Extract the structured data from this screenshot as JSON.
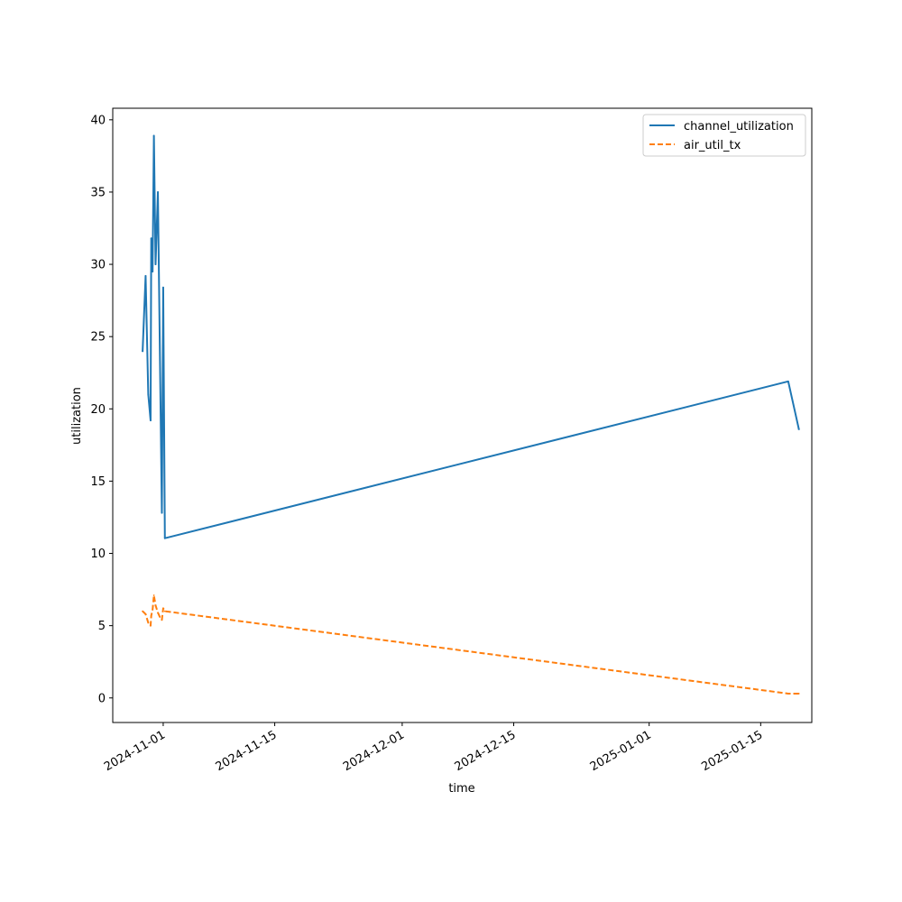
{
  "chart_data": {
    "type": "line",
    "xlabel": "time",
    "ylabel": "utilization",
    "x_axis_type": "date",
    "xlim": [
      "2024-10-25T16:00",
      "2025-01-21T10:00"
    ],
    "ylim": [
      -1.7,
      40.8
    ],
    "x_ticks": [
      "2024-11-01",
      "2024-11-15",
      "2024-12-01",
      "2024-12-15",
      "2025-01-01",
      "2025-01-15"
    ],
    "y_ticks": [
      0,
      5,
      10,
      15,
      20,
      25,
      30,
      35,
      40
    ],
    "grid": false,
    "legend_position": "top-right",
    "series": [
      {
        "name": "channel_utilization",
        "style": "solid",
        "color": "#1f77b4",
        "points": [
          {
            "x": "2024-10-29T10:00",
            "y": 24.0
          },
          {
            "x": "2024-10-29T19:00",
            "y": 29.2
          },
          {
            "x": "2024-10-30T03:00",
            "y": 21.0
          },
          {
            "x": "2024-10-30T10:00",
            "y": 19.2
          },
          {
            "x": "2024-10-30T12:00",
            "y": 31.8
          },
          {
            "x": "2024-10-30T16:00",
            "y": 29.5
          },
          {
            "x": "2024-10-30T20:00",
            "y": 38.9
          },
          {
            "x": "2024-10-31T01:00",
            "y": 30.0
          },
          {
            "x": "2024-10-31T08:00",
            "y": 35.0
          },
          {
            "x": "2024-10-31T20:00",
            "y": 12.8
          },
          {
            "x": "2024-11-01T00:00",
            "y": 28.4
          },
          {
            "x": "2024-11-01T05:00",
            "y": 11.05
          },
          {
            "x": "2025-01-18T11:00",
            "y": 21.9
          },
          {
            "x": "2025-01-19T19:00",
            "y": 18.6
          }
        ]
      },
      {
        "name": "air_util_tx",
        "style": "dashed",
        "color": "#ff7f0e",
        "points": [
          {
            "x": "2024-10-29T10:00",
            "y": 6.0
          },
          {
            "x": "2024-10-29T19:00",
            "y": 5.8
          },
          {
            "x": "2024-10-30T03:00",
            "y": 5.2
          },
          {
            "x": "2024-10-30T10:00",
            "y": 5.0
          },
          {
            "x": "2024-10-30T12:00",
            "y": 5.7
          },
          {
            "x": "2024-10-30T16:00",
            "y": 6.1
          },
          {
            "x": "2024-10-30T20:00",
            "y": 7.1
          },
          {
            "x": "2024-10-31T01:00",
            "y": 6.4
          },
          {
            "x": "2024-10-31T08:00",
            "y": 5.9
          },
          {
            "x": "2024-10-31T14:00",
            "y": 5.6
          },
          {
            "x": "2024-10-31T20:00",
            "y": 5.4
          },
          {
            "x": "2024-11-01T00:00",
            "y": 6.2
          },
          {
            "x": "2024-11-01T05:00",
            "y": 6.0
          },
          {
            "x": "2025-01-18T11:00",
            "y": 0.3
          },
          {
            "x": "2025-01-19T19:00",
            "y": 0.3
          }
        ]
      }
    ]
  }
}
